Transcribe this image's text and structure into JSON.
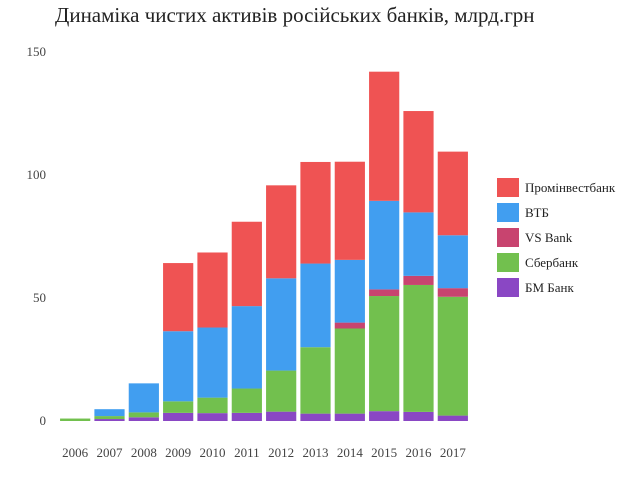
{
  "chart_data": {
    "type": "bar",
    "stacked": true,
    "title": "Динаміка чистих активів російських банків, млрд.грн",
    "xlabel": "",
    "ylabel": "",
    "ylim": [
      0,
      150
    ],
    "yticks": [
      0,
      50,
      100,
      150
    ],
    "grid": false,
    "legend_position": "right",
    "categories": [
      "2006",
      "2007",
      "2008",
      "2009",
      "2010",
      "2011",
      "2012",
      "2013",
      "2014",
      "2015",
      "2016",
      "2017"
    ],
    "series": [
      {
        "name": "БМ Банк",
        "color": "#8a47c4",
        "values": [
          0,
          0.8,
          1.5,
          3.3,
          3.2,
          3.3,
          3.8,
          3.0,
          3.0,
          4.0,
          3.7,
          2.2
        ]
      },
      {
        "name": "Сбербанк",
        "color": "#72c04e",
        "values": [
          1.0,
          1.2,
          2.0,
          4.7,
          6.3,
          9.9,
          16.7,
          27.0,
          34.6,
          46.8,
          51.6,
          48.3
        ]
      },
      {
        "name": "VS Bank",
        "color": "#c8446f",
        "values": [
          0,
          0,
          0,
          0,
          0,
          0,
          0,
          0,
          2.4,
          2.7,
          3.7,
          3.5
        ]
      },
      {
        "name": "ВТБ",
        "color": "#419ef0",
        "values": [
          0,
          2.8,
          11.8,
          28.5,
          28.5,
          33.5,
          37.5,
          34.0,
          25.5,
          36.0,
          25.8,
          21.5
        ]
      },
      {
        "name": "Промінвестбанк",
        "color": "#ef5353",
        "values": [
          0,
          0,
          0,
          27.7,
          30.5,
          34.3,
          37.8,
          41.3,
          39.9,
          52.5,
          41.2,
          34.0
        ]
      }
    ]
  }
}
